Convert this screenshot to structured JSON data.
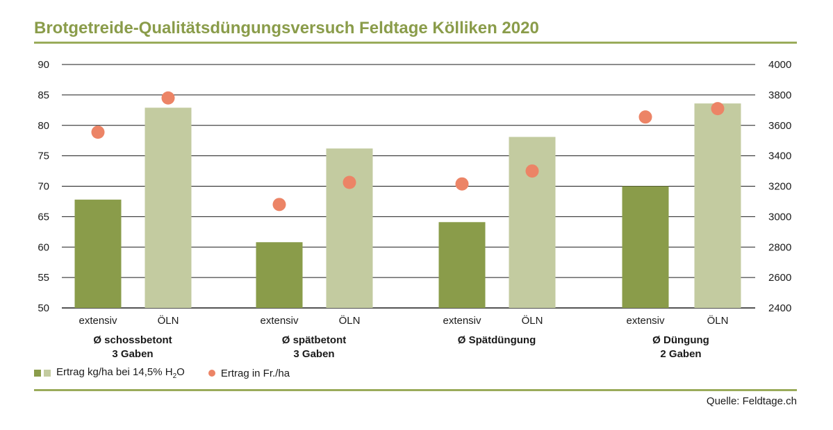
{
  "title": "Brotgetreide-Qualitätsdüngungsversuch Feldtage Kölliken 2020",
  "source": "Quelle: Feldtage.ch",
  "colors": {
    "accent": "#8a9c4a",
    "extensiv": "#8a9c4a",
    "oeln": "#c3cba0",
    "dot": "#ec8466",
    "grid": "#1a1a1a"
  },
  "legend": {
    "series1_prefix": "Ertrag kg/ha bei 14,5% H",
    "series1_sub": "2",
    "series1_suffix": "O",
    "series2": "Ertrag in Fr./ha"
  },
  "chart_data": {
    "type": "bar",
    "title": "Brotgetreide-Qualitätsdüngungsversuch Feldtage Kölliken 2020",
    "groups": [
      {
        "label": [
          "Ø schossbetont",
          "3 Gaben"
        ]
      },
      {
        "label": [
          "Ø spätbetont",
          "3 Gaben"
        ]
      },
      {
        "label": [
          "Ø Spätdüngung"
        ]
      },
      {
        "label": [
          "Ø Düngung",
          "2 Gaben"
        ]
      }
    ],
    "categories": [
      "extensiv",
      "ÖLN",
      "extensiv",
      "ÖLN",
      "extensiv",
      "ÖLN",
      "extensiv",
      "ÖLN"
    ],
    "series": [
      {
        "name": "Ertrag kg/ha bei 14,5% H2O",
        "axis": "left",
        "kind": "bar",
        "values": [
          67.8,
          82.9,
          60.8,
          76.2,
          64.1,
          78.1,
          70.0,
          83.6
        ]
      },
      {
        "name": "Ertrag in Fr./ha",
        "axis": "right",
        "kind": "dot",
        "values": [
          3555,
          3780,
          3080,
          3225,
          3215,
          3300,
          3655,
          3710
        ]
      }
    ],
    "y_left": {
      "min": 50,
      "max": 90,
      "step": 5,
      "ticks": [
        "50",
        "55",
        "60",
        "65",
        "70",
        "75",
        "80",
        "85",
        "90"
      ]
    },
    "y_right": {
      "min": 2400,
      "max": 4000,
      "step": 200,
      "ticks": [
        "2400",
        "2600",
        "2800",
        "3000",
        "3200",
        "3400",
        "3600",
        "3800",
        "4000"
      ]
    },
    "grid": true,
    "legend_position": "bottom-left"
  }
}
